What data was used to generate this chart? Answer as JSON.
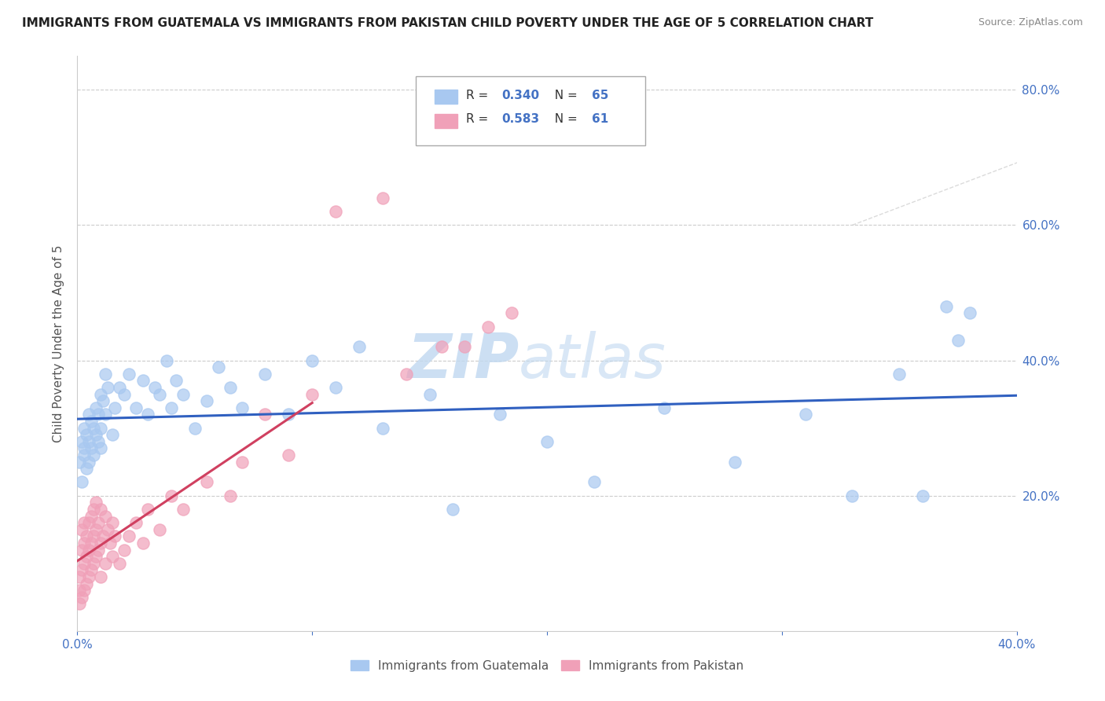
{
  "title": "IMMIGRANTS FROM GUATEMALA VS IMMIGRANTS FROM PAKISTAN CHILD POVERTY UNDER THE AGE OF 5 CORRELATION CHART",
  "source": "Source: ZipAtlas.com",
  "ylabel": "Child Poverty Under the Age of 5",
  "xlim": [
    0.0,
    0.4
  ],
  "ylim": [
    0.0,
    0.85
  ],
  "color_blue": "#A8C8F0",
  "color_pink": "#F0A0B8",
  "line_color_blue": "#3060C0",
  "line_color_pink": "#D04060",
  "tick_color": "#4472C4",
  "watermark_color": "#C0D8F0",
  "legend_r1": "0.340",
  "legend_n1": "65",
  "legend_r2": "0.583",
  "legend_n2": "61",
  "guat_x": [
    0.001,
    0.002,
    0.002,
    0.003,
    0.003,
    0.003,
    0.004,
    0.004,
    0.005,
    0.005,
    0.005,
    0.006,
    0.006,
    0.007,
    0.007,
    0.008,
    0.008,
    0.009,
    0.009,
    0.01,
    0.01,
    0.01,
    0.011,
    0.012,
    0.012,
    0.013,
    0.015,
    0.016,
    0.018,
    0.02,
    0.022,
    0.025,
    0.028,
    0.03,
    0.033,
    0.035,
    0.038,
    0.04,
    0.042,
    0.045,
    0.05,
    0.055,
    0.06,
    0.065,
    0.07,
    0.08,
    0.09,
    0.1,
    0.11,
    0.12,
    0.13,
    0.15,
    0.16,
    0.18,
    0.2,
    0.22,
    0.25,
    0.28,
    0.31,
    0.33,
    0.35,
    0.36,
    0.37,
    0.375,
    0.38
  ],
  "guat_y": [
    0.25,
    0.28,
    0.22,
    0.27,
    0.3,
    0.26,
    0.29,
    0.24,
    0.32,
    0.28,
    0.25,
    0.31,
    0.27,
    0.3,
    0.26,
    0.33,
    0.29,
    0.32,
    0.28,
    0.35,
    0.3,
    0.27,
    0.34,
    0.32,
    0.38,
    0.36,
    0.29,
    0.33,
    0.36,
    0.35,
    0.38,
    0.33,
    0.37,
    0.32,
    0.36,
    0.35,
    0.4,
    0.33,
    0.37,
    0.35,
    0.3,
    0.34,
    0.39,
    0.36,
    0.33,
    0.38,
    0.32,
    0.4,
    0.36,
    0.42,
    0.3,
    0.35,
    0.18,
    0.32,
    0.28,
    0.22,
    0.33,
    0.25,
    0.32,
    0.2,
    0.38,
    0.2,
    0.48,
    0.43,
    0.47
  ],
  "pak_x": [
    0.001,
    0.001,
    0.001,
    0.002,
    0.002,
    0.002,
    0.002,
    0.003,
    0.003,
    0.003,
    0.003,
    0.004,
    0.004,
    0.004,
    0.005,
    0.005,
    0.005,
    0.006,
    0.006,
    0.006,
    0.007,
    0.007,
    0.007,
    0.008,
    0.008,
    0.008,
    0.009,
    0.009,
    0.01,
    0.01,
    0.01,
    0.011,
    0.012,
    0.012,
    0.013,
    0.014,
    0.015,
    0.015,
    0.016,
    0.018,
    0.02,
    0.022,
    0.025,
    0.028,
    0.03,
    0.035,
    0.04,
    0.045,
    0.055,
    0.065,
    0.07,
    0.08,
    0.09,
    0.1,
    0.11,
    0.13,
    0.14,
    0.155,
    0.165,
    0.175,
    0.185
  ],
  "pak_y": [
    0.04,
    0.06,
    0.08,
    0.05,
    0.09,
    0.12,
    0.15,
    0.06,
    0.1,
    0.13,
    0.16,
    0.07,
    0.11,
    0.14,
    0.08,
    0.12,
    0.16,
    0.09,
    0.13,
    0.17,
    0.1,
    0.14,
    0.18,
    0.11,
    0.15,
    0.19,
    0.12,
    0.16,
    0.08,
    0.13,
    0.18,
    0.14,
    0.1,
    0.17,
    0.15,
    0.13,
    0.11,
    0.16,
    0.14,
    0.1,
    0.12,
    0.14,
    0.16,
    0.13,
    0.18,
    0.15,
    0.2,
    0.18,
    0.22,
    0.2,
    0.25,
    0.32,
    0.26,
    0.35,
    0.62,
    0.64,
    0.38,
    0.42,
    0.42,
    0.45,
    0.47
  ]
}
